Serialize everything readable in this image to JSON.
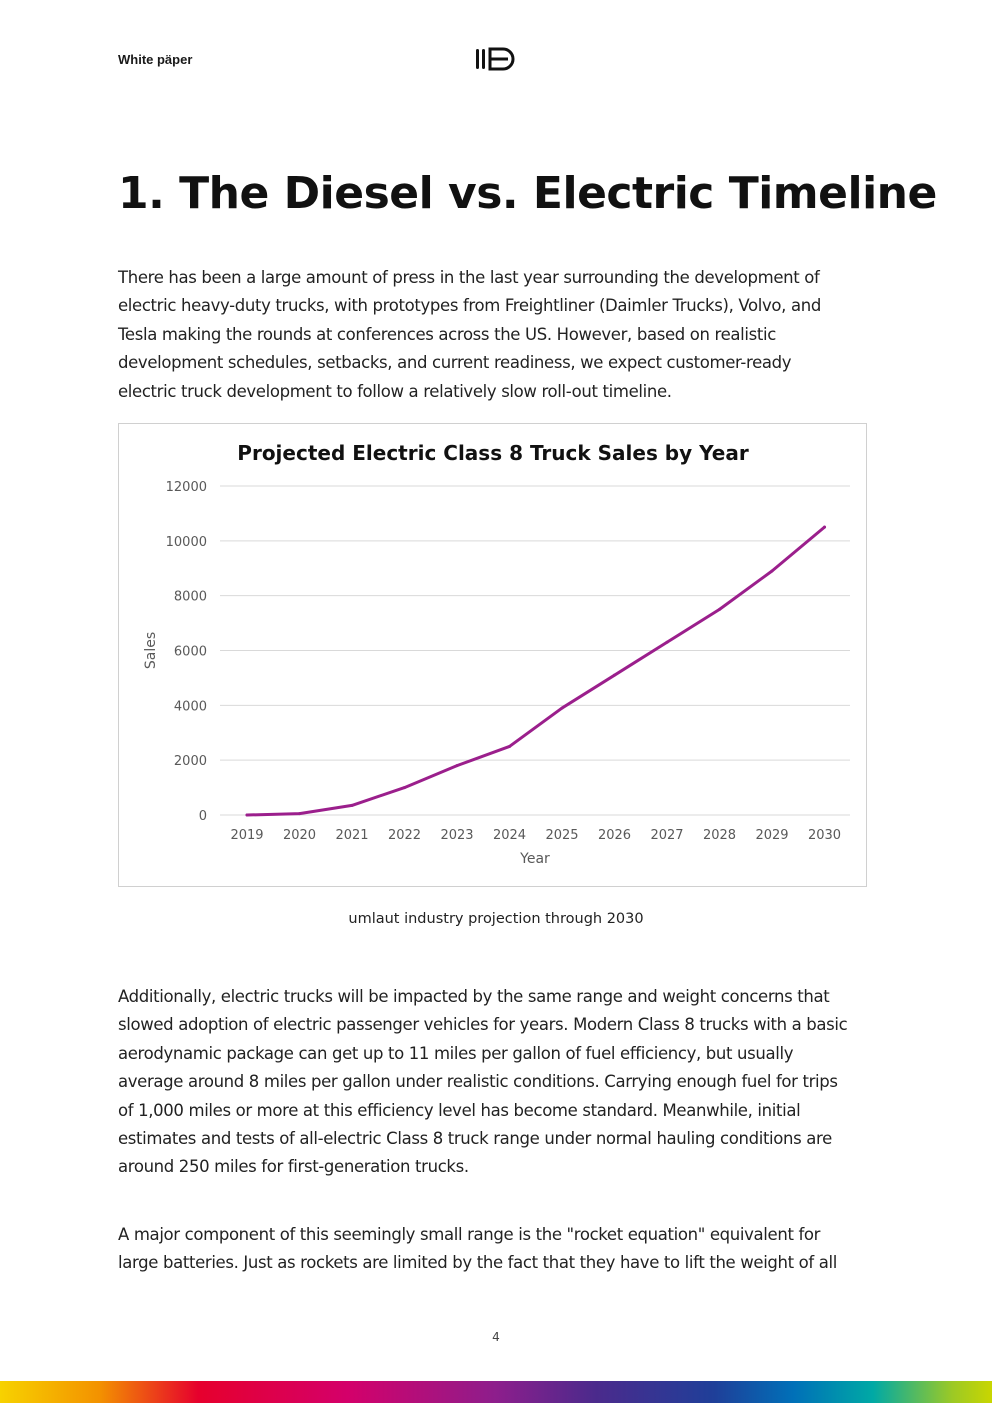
{
  "header": {
    "label": "White päper"
  },
  "logo": {
    "icon": "umlaut-logo-icon"
  },
  "title": "1. The Diesel vs. Electric Timeline",
  "intro_lines": [
    "There has been a large amount of press in the last year surrounding the development of",
    "electric heavy-duty trucks, with prototypes from Freightliner (Daimler Trucks), Volvo, and",
    "Tesla making the rounds at conferences across the US.  However, based on realistic",
    "development schedules, setbacks, and current readiness, we expect customer-ready",
    "electric truck development to follow a relatively slow roll-out timeline."
  ],
  "chart_data": {
    "type": "line",
    "title": "Projected Electric Class 8 Truck Sales by Year",
    "xlabel": "Year",
    "ylabel": "Sales",
    "x": [
      2019,
      2020,
      2021,
      2022,
      2023,
      2024,
      2025,
      2026,
      2027,
      2028,
      2029,
      2030
    ],
    "ylim": [
      0,
      12000
    ],
    "yticks": [
      0,
      2000,
      4000,
      6000,
      8000,
      10000,
      12000
    ],
    "grid": true,
    "legend": "none",
    "series": [
      {
        "values": [
          0,
          50,
          350,
          1000,
          1800,
          2500,
          3900,
          5100,
          6300,
          7500,
          8900,
          10500
        ],
        "color": "#9b1f8c"
      }
    ]
  },
  "caption": "umlaut industry projection through 2030",
  "para2_lines": [
    "Additionally, electric trucks will be impacted by the same range and weight concerns that",
    "slowed adoption of electric passenger vehicles for years.  Modern Class 8 trucks with a basic",
    "aerodynamic package can get up to 11 miles per gallon of fuel efficiency, but usually",
    "average around 8 miles per gallon under realistic conditions.  Carrying enough fuel for trips",
    "of 1,000 miles or more at this efficiency level has become standard.  Meanwhile, initial",
    "estimates and tests of all-electric Class 8 truck range under normal hauling conditions are",
    "around 250 miles for first-generation trucks."
  ],
  "para3_lines": [
    "A major component of this seemingly small range is the \"rocket equation\" equivalent for",
    "large batteries.  Just as rockets are limited by the fact that they have to lift the weight of all"
  ],
  "page_number": "4"
}
